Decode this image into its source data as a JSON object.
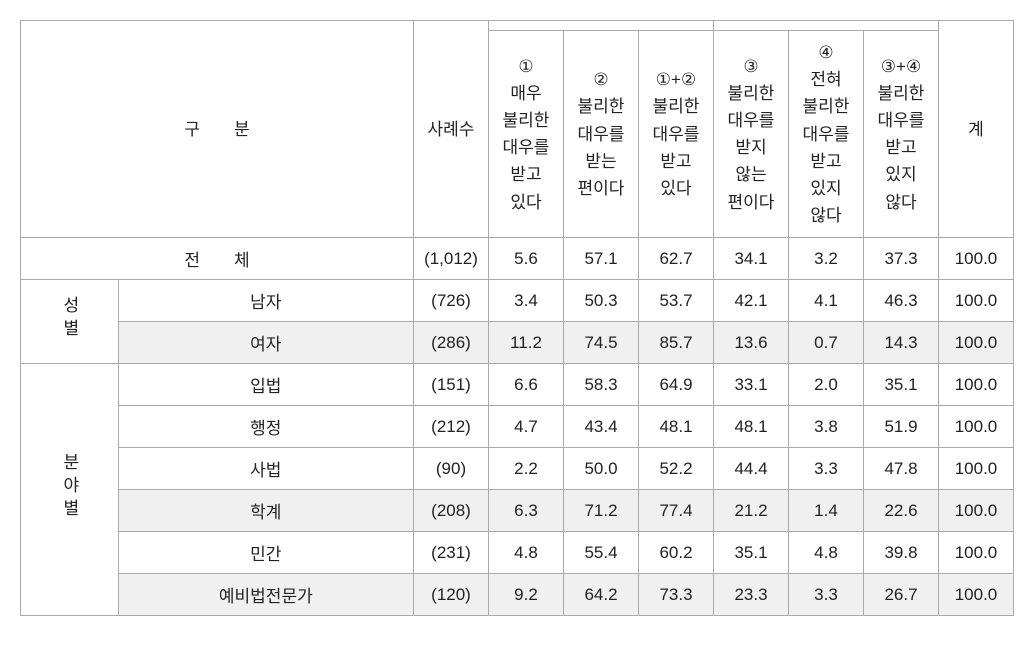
{
  "headers": {
    "category_label": "구　　분",
    "count_label": "사례수",
    "col1": "①\n매우\n불리한\n대우를\n받고\n있다",
    "col2": "②\n불리한\n대우를\n받는\n편이다",
    "col12": "①+②\n불리한\n대우를\n받고\n있다",
    "col3": "③\n불리한\n대우를\n받지\n않는\n편이다",
    "col4": "④\n전혀\n불리한\n대우를\n받고\n있지\n않다",
    "col34": "③+④\n불리한\n대우를\n받고\n있지\n않다",
    "total": "계"
  },
  "groups": {
    "total": {
      "label": "전　　체",
      "row": {
        "count": "(1,012)",
        "c1": "5.6",
        "c2": "57.1",
        "c12": "62.7",
        "c3": "34.1",
        "c4": "3.2",
        "c34": "37.3",
        "total": "100.0"
      }
    },
    "gender": {
      "label": "성별",
      "rows": [
        {
          "label": "남자",
          "count": "(726)",
          "c1": "3.4",
          "c2": "50.3",
          "c12": "53.7",
          "c3": "42.1",
          "c4": "4.1",
          "c34": "46.3",
          "total": "100.0",
          "shade": false
        },
        {
          "label": "여자",
          "count": "(286)",
          "c1": "11.2",
          "c2": "74.5",
          "c12": "85.7",
          "c3": "13.6",
          "c4": "0.7",
          "c34": "14.3",
          "total": "100.0",
          "shade": true
        }
      ]
    },
    "field": {
      "label": "분야별",
      "rows": [
        {
          "label": "입법",
          "count": "(151)",
          "c1": "6.6",
          "c2": "58.3",
          "c12": "64.9",
          "c3": "33.1",
          "c4": "2.0",
          "c34": "35.1",
          "total": "100.0",
          "shade": false
        },
        {
          "label": "행정",
          "count": "(212)",
          "c1": "4.7",
          "c2": "43.4",
          "c12": "48.1",
          "c3": "48.1",
          "c4": "3.8",
          "c34": "51.9",
          "total": "100.0",
          "shade": false
        },
        {
          "label": "사법",
          "count": "(90)",
          "c1": "2.2",
          "c2": "50.0",
          "c12": "52.2",
          "c3": "44.4",
          "c4": "3.3",
          "c34": "47.8",
          "total": "100.0",
          "shade": false
        },
        {
          "label": "학계",
          "count": "(208)",
          "c1": "6.3",
          "c2": "71.2",
          "c12": "77.4",
          "c3": "21.2",
          "c4": "1.4",
          "c34": "22.6",
          "total": "100.0",
          "shade": true
        },
        {
          "label": "민간",
          "count": "(231)",
          "c1": "4.8",
          "c2": "55.4",
          "c12": "60.2",
          "c3": "35.1",
          "c4": "4.8",
          "c34": "39.8",
          "total": "100.0",
          "shade": false
        },
        {
          "label": "예비법전문가",
          "count": "(120)",
          "c1": "9.2",
          "c2": "64.2",
          "c12": "73.3",
          "c3": "23.3",
          "c4": "3.3",
          "c34": "26.7",
          "total": "100.0",
          "shade": true
        }
      ]
    }
  },
  "styling": {
    "font_size": 17,
    "border_color": "#aaaaaa",
    "shade_color": "#f0f0f0",
    "text_color": "#222222",
    "background_color": "#ffffff"
  }
}
